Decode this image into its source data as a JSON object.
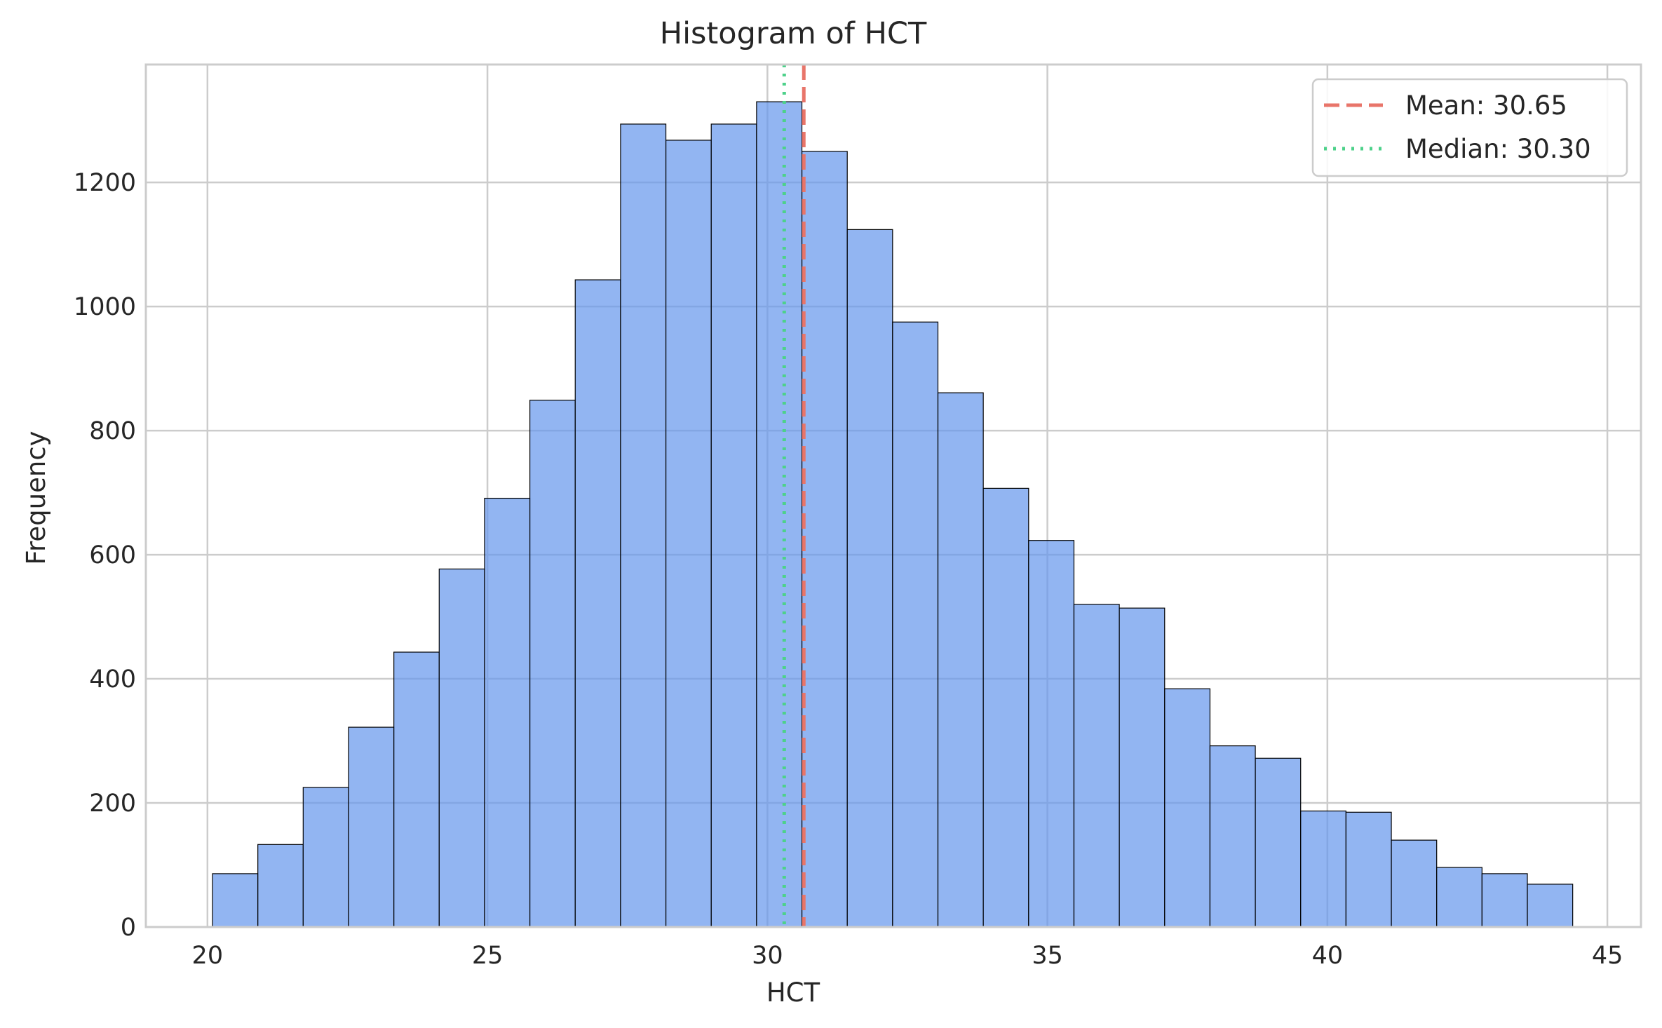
{
  "chart_data": {
    "type": "histogram",
    "title": "Histogram of HCT",
    "xlabel": "HCT",
    "ylabel": "Frequency",
    "xlim": [
      18.9,
      45.6
    ],
    "ylim": [
      0,
      1390
    ],
    "x_ticks": [
      20,
      25,
      30,
      35,
      40,
      45
    ],
    "x_tick_labels": [
      "20",
      "25",
      "30",
      "35",
      "40",
      "45"
    ],
    "y_ticks": [
      0,
      200,
      400,
      600,
      800,
      1000,
      1200
    ],
    "y_tick_labels": [
      "0",
      "200",
      "400",
      "600",
      "800",
      "1000",
      "1200"
    ],
    "grid": true,
    "legend_position": "top-right",
    "bar_color": "#6495ED",
    "bar_edge_color": "#000000",
    "bin_start": 20.09,
    "bin_width": 0.8097,
    "values": [
      86,
      133,
      225,
      322,
      443,
      577,
      691,
      849,
      1043,
      1294,
      1268,
      1294,
      1330,
      1250,
      1124,
      975,
      861,
      707,
      623,
      520,
      514,
      384,
      292,
      272,
      187,
      185,
      140,
      96,
      86,
      69
    ],
    "reference_lines": [
      {
        "label": "Mean: 30.65",
        "x": 30.65,
        "style": "dashed",
        "color": "#E8756A"
      },
      {
        "label": "Median: 30.30",
        "x": 30.3,
        "style": "dotted",
        "color": "#4DD18A"
      }
    ]
  }
}
